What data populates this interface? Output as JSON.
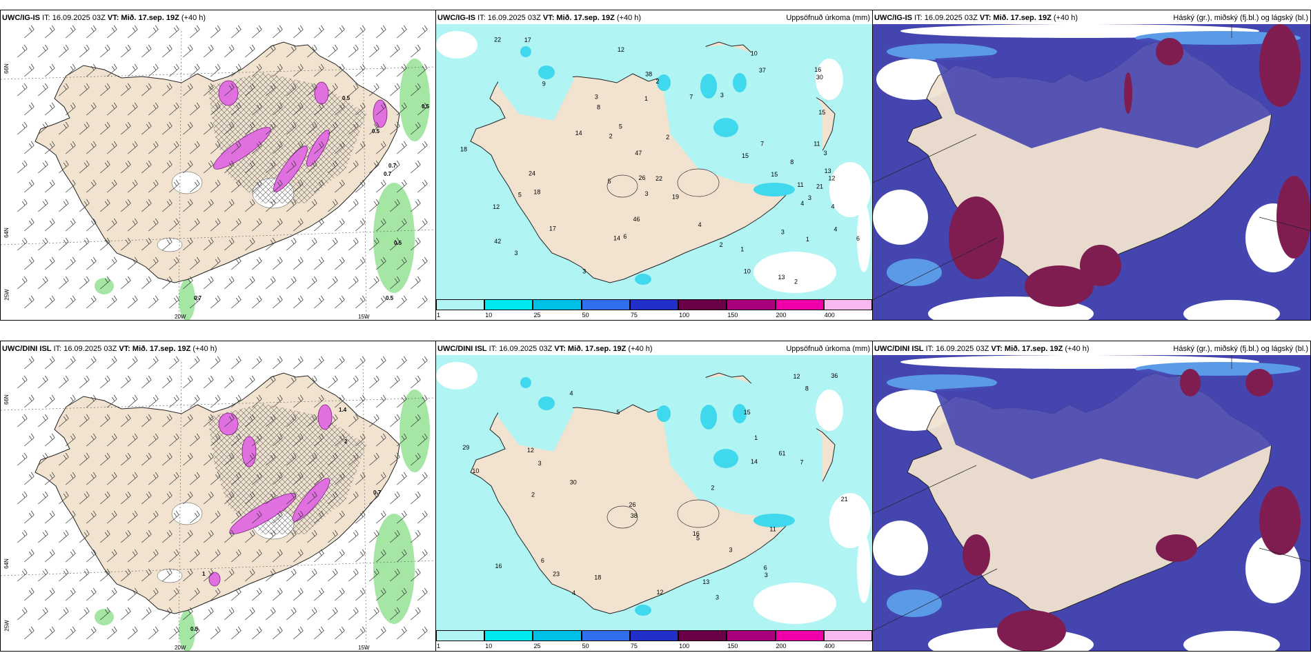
{
  "panels": [
    {
      "id": "r1c1",
      "model": "UWC/IG-IS",
      "it": "IT: 16.09.2025 03Z",
      "vt_label": "VT:",
      "vt": "Mið. 17.sep. 19Z",
      "lead": "(+40 h)",
      "right_title": "",
      "grid_labels": {
        "lat_top": "66N",
        "lat_bottom": "64N",
        "lon_left": "25W",
        "lon_mid": "20W",
        "lon_right": "15W"
      },
      "values": [
        "0.5",
        "0.5",
        "0.7",
        "0.5",
        "0.5",
        "0.7",
        "0.5",
        "0.7"
      ]
    },
    {
      "id": "r1c2",
      "model": "UWC/IG-IS",
      "it": "IT: 16.09.2025 03Z",
      "vt_label": "VT:",
      "vt": "Mið. 17.sep. 19Z",
      "lead": "(+40 h)",
      "right_title": "Uppsöfnuð úrkoma (mm)",
      "values": [
        "2",
        "3",
        "5",
        "4",
        "2",
        "1",
        "9",
        "24",
        "22",
        "10",
        "3",
        "26",
        "46",
        "42",
        "17",
        "15",
        "21",
        "13",
        "4",
        "3",
        "47",
        "18",
        "37",
        "19",
        "12",
        "22",
        "14",
        "30",
        "13",
        "8",
        "11",
        "14",
        "7",
        "6",
        "18",
        "12",
        "11",
        "12",
        "17",
        "38",
        "15",
        "16",
        "2",
        "1",
        "3",
        "10",
        "8",
        "4",
        "6",
        "5",
        "4",
        "3",
        "2",
        "1",
        "2",
        "3",
        "7",
        "5",
        "3",
        "15",
        "3"
      ]
    },
    {
      "id": "r1c3",
      "model": "UWC/IG-IS",
      "it": "IT: 16.09.2025 03Z",
      "vt_label": "VT:",
      "vt": "Mið. 17.sep. 19Z",
      "lead": "(+40 h)",
      "right_title": "Háský (gr.), miðský (fj.bl.) og lágský (bl.)",
      "values": []
    },
    {
      "id": "r2c1",
      "model": "UWC/DINI ISL",
      "it": "IT: 16.09.2025 03Z",
      "vt_label": "VT:",
      "vt": "Mið. 17.sep. 19Z",
      "lead": "(+40 h)",
      "right_title": "",
      "grid_labels": {
        "lat_top": "66N",
        "lat_bottom": "64N",
        "lon_left": "25W",
        "lon_mid": "20W",
        "lon_right": "15W"
      },
      "values": [
        "1.4",
        "2",
        "0.7",
        "1",
        "0.5"
      ]
    },
    {
      "id": "r2c2",
      "model": "UWC/DINI ISL",
      "it": "IT: 16.09.2025 03Z",
      "vt_label": "VT:",
      "vt": "Mið. 17.sep. 19Z",
      "lead": "(+40 h)",
      "right_title": "Uppsöfnuð úrkoma (mm)",
      "values": [
        "3",
        "4",
        "6",
        "12",
        "61",
        "13",
        "21",
        "30",
        "38",
        "23",
        "16",
        "29",
        "26",
        "16",
        "14",
        "12",
        "10",
        "8",
        "11",
        "7",
        "6",
        "5",
        "4",
        "3",
        "2",
        "1",
        "2",
        "3",
        "12",
        "5",
        "3",
        "36",
        "15",
        "18"
      ]
    },
    {
      "id": "r2c3",
      "model": "UWC/DINI ISL",
      "it": "IT: 16.09.2025 03Z",
      "vt_label": "VT:",
      "vt": "Mið. 17.sep. 19Z",
      "lead": "(+40 h)",
      "right_title": "Háský (gr.), miðský (fj.bl.) og lágský (bl.)",
      "values": []
    }
  ],
  "colorbar": {
    "ticks": [
      "1",
      "10",
      "25",
      "50",
      "75",
      "100",
      "150",
      "200",
      "400"
    ],
    "colors": [
      "#b0f4f4",
      "#00e8f0",
      "#00c0e8",
      "#2f6ff0",
      "#2030c8",
      "#6a0048",
      "#a8007a",
      "#f000a8",
      "#f8b8f0"
    ]
  },
  "map_colors": {
    "land": "#f2e3d0",
    "precip_light": "#b0f4f4",
    "precip_mid": "#40d8ec",
    "cloud_high": "#7f1d50",
    "cloud_mid": "#4545b0",
    "cloud_low": "#5a9ae6",
    "magenta": "#e070e0",
    "green": "#8ee08e"
  }
}
